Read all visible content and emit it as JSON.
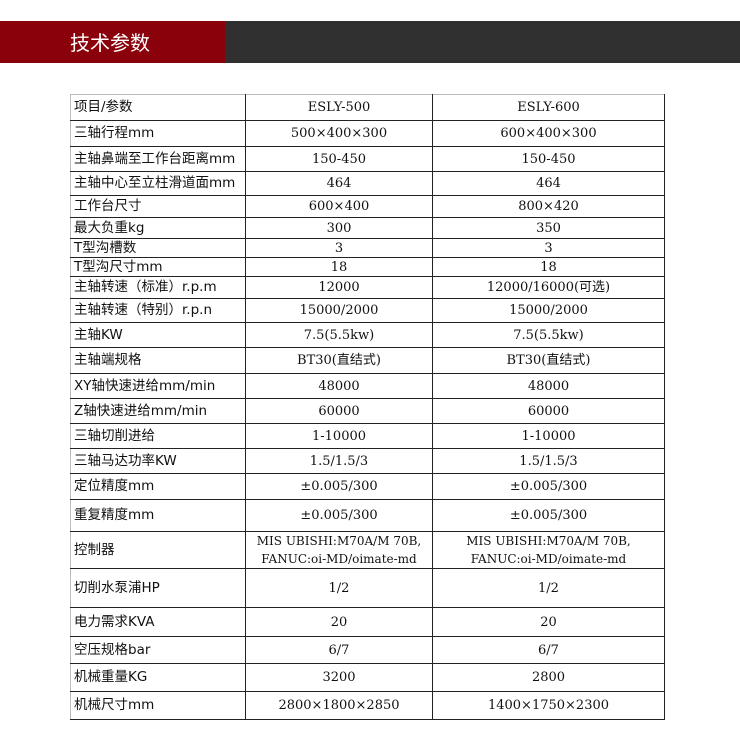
{
  "header": {
    "title": "技术参数",
    "colors": {
      "red": "#8a000b",
      "dark": "#303030"
    }
  },
  "table": {
    "columns": [
      "项目/参数",
      "ESLY-500",
      "ESLY-600"
    ],
    "rows": [
      [
        "三轴行程mm",
        "500×400×300",
        "600×400×300"
      ],
      [
        "主轴鼻端至工作台距离mm",
        "150-450",
        "150-450"
      ],
      [
        "主轴中心至立柱滑道面mm",
        "464",
        "464"
      ],
      [
        "工作台尺寸",
        "600×400",
        "800×420"
      ],
      [
        "最大负重kg",
        "300",
        "350"
      ],
      [
        "T型沟槽数",
        "3",
        "3"
      ],
      [
        "T型沟尺寸mm",
        "18",
        "18"
      ],
      [
        "主轴转速（标准）r.p.m",
        "12000",
        "12000/16000(可选)"
      ],
      [
        "主轴转速（特别）r.p.n",
        "15000/2000",
        "15000/2000"
      ],
      [
        "主轴KW",
        "7.5(5.5kw)",
        "7.5(5.5kw)"
      ],
      [
        "主轴端规格",
        "BT30(直结式)",
        "BT30(直结式)"
      ],
      [
        "XY轴快速进给mm/min",
        "48000",
        "48000"
      ],
      [
        "Z轴快速进给mm/min",
        "60000",
        "60000"
      ],
      [
        "三轴切削进给",
        "1-10000",
        "1-10000"
      ],
      [
        "三轴马达功率KW",
        "1.5/1.5/3",
        "1.5/1.5/3"
      ],
      [
        "定位精度mm",
        "±0.005/300",
        "±0.005/300"
      ],
      [
        "重复精度mm",
        "±0.005/300",
        "±0.005/300"
      ],
      [
        "控制器",
        "MIS UBISHI:M70A/M 70B,\nFANUC:oi-MD/oimate-md",
        "MIS UBISHI:M70A/M 70B,\nFANUC:oi-MD/oimate-md"
      ],
      [
        "切削水泵浦HP",
        "1/2",
        "1/2"
      ],
      [
        "电力需求KVA",
        "20",
        "20"
      ],
      [
        "空压规格bar",
        "6/7",
        "6/7"
      ],
      [
        "机械重量KG",
        "3200",
        "2800"
      ],
      [
        "机械尺寸mm",
        "2800×1800×2850",
        "1400×1750×2300"
      ]
    ]
  }
}
